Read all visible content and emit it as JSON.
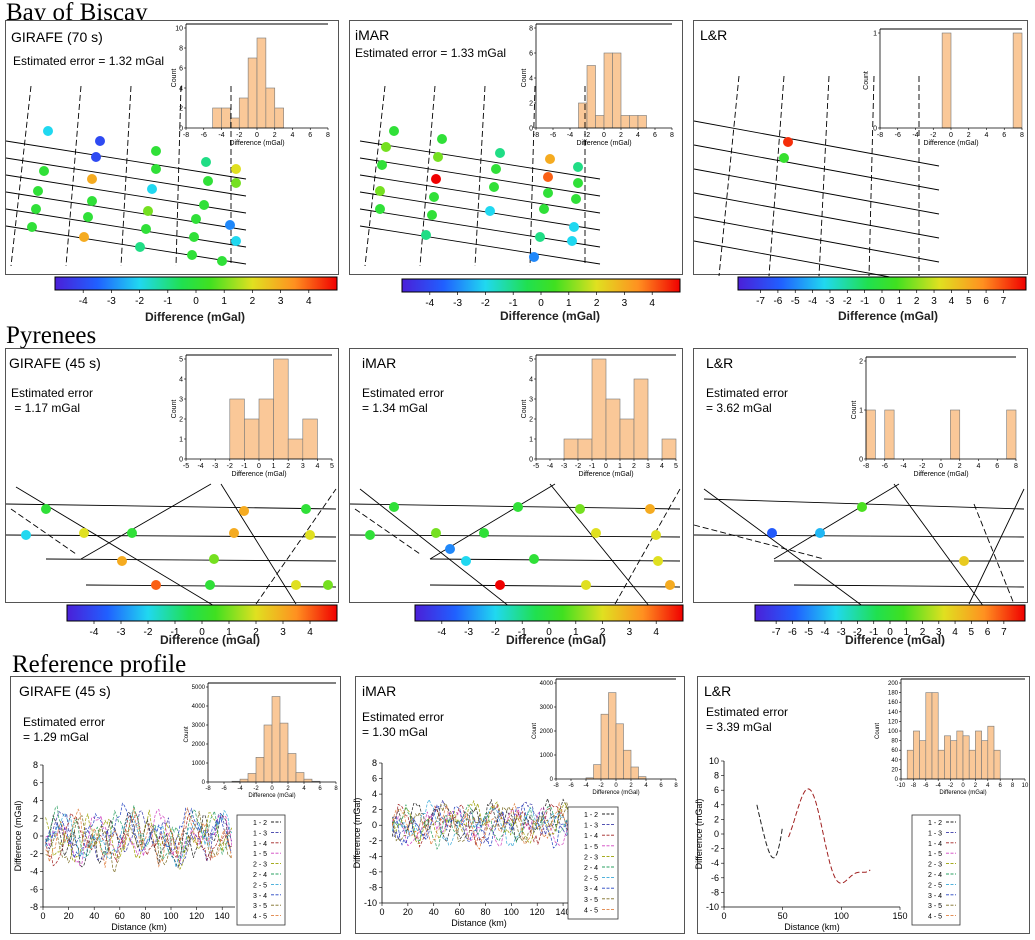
{
  "sections": {
    "biscay": "Bay of Biscay",
    "pyrenees": "Pyrenees",
    "reference": "Reference profile"
  },
  "colorbar_label": "Difference (mGal)",
  "hist_xlabel": "Difference (mGal)",
  "hist_ylabel": "Count",
  "profile_xlabel": "Distance (km)",
  "profile_ylabel": "Difference (mGal)",
  "legend_pairs": [
    "1 - 2",
    "1 - 3",
    "1 - 4",
    "1 - 5",
    "2 - 3",
    "2 - 4",
    "2 - 5",
    "3 - 4",
    "3 - 5",
    "4 - 5"
  ],
  "legend_colors": [
    "#222222",
    "#3a3aa8",
    "#a02020",
    "#d040c0",
    "#9aa000",
    "#2aa060",
    "#38a8d8",
    "#2040c0",
    "#7a6a20",
    "#e08040"
  ],
  "panels": {
    "b1": {
      "title": "GIRAFE (70 s)",
      "error": "Estimated error = 1.32 mGal"
    },
    "b2": {
      "title": "iMAR",
      "error": "Estimated error = 1.33 mGal"
    },
    "b3": {
      "title": "L&R",
      "error": ""
    },
    "p1": {
      "title": "GIRAFE (45 s)",
      "error": "Estimated error\n = 1.17 mGal"
    },
    "p2": {
      "title": "iMAR",
      "error": "Estimated error\n= 1.34 mGal"
    },
    "p3": {
      "title": "L&R",
      "error": "Estimated error\n= 3.62 mGal"
    },
    "r1": {
      "title": "GIRAFE (45 s)",
      "error": "Estimated error\n= 1.29 mGal"
    },
    "r2": {
      "title": "iMAR",
      "error": "Estimated error\n= 1.30 mGal"
    },
    "r3": {
      "title": "L&R",
      "error": "Estimated error\n= 3.39 mGal"
    }
  },
  "chart_data": [
    {
      "id": "b1_hist",
      "type": "bar",
      "xlabel": "Difference (mGal)",
      "ylabel": "Count",
      "xlim": [
        -8,
        8
      ],
      "ylim": [
        0,
        10
      ],
      "xticks": [
        -8,
        -6,
        -4,
        -2,
        0,
        2,
        4,
        6,
        8
      ],
      "yticks": [
        0,
        2,
        4,
        6,
        8,
        10
      ],
      "bins": [
        [
          -5,
          -4,
          2
        ],
        [
          -4,
          -3,
          2
        ],
        [
          -3,
          -2,
          1
        ],
        [
          -2,
          -1,
          3
        ],
        [
          -1,
          0,
          7
        ],
        [
          0,
          1,
          9
        ],
        [
          1,
          2,
          4
        ],
        [
          2,
          3,
          2
        ]
      ]
    },
    {
      "id": "b2_hist",
      "type": "bar",
      "xlabel": "Difference (mGal)",
      "ylabel": "Count",
      "xlim": [
        -8,
        8
      ],
      "ylim": [
        0,
        8
      ],
      "xticks": [
        -8,
        -6,
        -4,
        -2,
        0,
        2,
        4,
        6,
        8
      ],
      "yticks": [
        0,
        2,
        4,
        6,
        8
      ],
      "bins": [
        [
          -3,
          -2,
          2
        ],
        [
          -2,
          -1,
          5
        ],
        [
          -1,
          0,
          1
        ],
        [
          0,
          1,
          6
        ],
        [
          1,
          2,
          6
        ],
        [
          2,
          3,
          1
        ],
        [
          3,
          4,
          1
        ],
        [
          4,
          5,
          1
        ]
      ]
    },
    {
      "id": "b3_hist",
      "type": "bar",
      "xlabel": "Difference (mGal)",
      "ylabel": "Count",
      "xlim": [
        -8,
        8
      ],
      "ylim": [
        0,
        1
      ],
      "xticks": [
        -8,
        -6,
        -4,
        -2,
        0,
        2,
        4,
        6,
        8
      ],
      "yticks": [
        0,
        1
      ],
      "bins": [
        [
          -1,
          0,
          1
        ],
        [
          7,
          8,
          1
        ]
      ]
    },
    {
      "id": "p1_hist",
      "type": "bar",
      "xlabel": "Difference (mGal)",
      "ylabel": "Count",
      "xlim": [
        -5,
        5
      ],
      "ylim": [
        0,
        5
      ],
      "xticks": [
        -5,
        -4,
        -3,
        -2,
        -1,
        0,
        1,
        2,
        3,
        4,
        5
      ],
      "yticks": [
        0,
        1,
        2,
        3,
        4,
        5
      ],
      "bins": [
        [
          -2,
          -1,
          3
        ],
        [
          -1,
          0,
          2
        ],
        [
          0,
          1,
          3
        ],
        [
          1,
          2,
          5
        ],
        [
          2,
          3,
          1
        ],
        [
          3,
          4,
          2
        ]
      ]
    },
    {
      "id": "p2_hist",
      "type": "bar",
      "xlabel": "Difference (mGal)",
      "ylabel": "Count",
      "xlim": [
        -5,
        5
      ],
      "ylim": [
        0,
        5
      ],
      "xticks": [
        -5,
        -4,
        -3,
        -2,
        -1,
        0,
        1,
        2,
        3,
        4,
        5
      ],
      "yticks": [
        0,
        1,
        2,
        3,
        4,
        5
      ],
      "bins": [
        [
          -3,
          -2,
          1
        ],
        [
          -2,
          -1,
          1
        ],
        [
          -1,
          0,
          5
        ],
        [
          0,
          1,
          3
        ],
        [
          1,
          2,
          2
        ],
        [
          2,
          3,
          4
        ],
        [
          4,
          5,
          1
        ]
      ]
    },
    {
      "id": "p3_hist",
      "type": "bar",
      "xlabel": "Difference (mGal)",
      "ylabel": "Count",
      "xlim": [
        -8,
        8
      ],
      "ylim": [
        0,
        2
      ],
      "xticks": [
        -8,
        -6,
        -4,
        -2,
        0,
        2,
        4,
        6,
        8
      ],
      "yticks": [
        0,
        1,
        2
      ],
      "bins": [
        [
          -8,
          -7,
          1
        ],
        [
          -6,
          -5,
          1
        ],
        [
          1,
          2,
          1
        ],
        [
          7,
          8,
          1
        ]
      ]
    },
    {
      "id": "r1_hist",
      "type": "bar",
      "xlabel": "Difference (mGal)",
      "ylabel": "Count",
      "xlim": [
        -8,
        8
      ],
      "ylim": [
        0,
        5000
      ],
      "xticks": [
        -8,
        -6,
        -4,
        -2,
        0,
        2,
        4,
        6,
        8
      ],
      "yticks": [
        0,
        1000,
        2000,
        3000,
        4000,
        5000
      ],
      "bins": [
        [
          -5,
          -4,
          40
        ],
        [
          -4,
          -3,
          150
        ],
        [
          -3,
          -2,
          450
        ],
        [
          -2,
          -1,
          1300
        ],
        [
          -1,
          0,
          3000
        ],
        [
          0,
          1,
          4500
        ],
        [
          1,
          2,
          3100
        ],
        [
          2,
          3,
          1500
        ],
        [
          3,
          4,
          500
        ],
        [
          4,
          5,
          150
        ],
        [
          5,
          6,
          40
        ]
      ]
    },
    {
      "id": "r2_hist",
      "type": "bar",
      "xlabel": "Difference (mGal)",
      "ylabel": "Count",
      "xlim": [
        -8,
        8
      ],
      "ylim": [
        0,
        4000
      ],
      "xticks": [
        -8,
        -6,
        -4,
        -2,
        0,
        2,
        4,
        6,
        8
      ],
      "yticks": [
        0,
        1000,
        2000,
        3000,
        4000
      ],
      "bins": [
        [
          -4,
          -3,
          50
        ],
        [
          -3,
          -2,
          600
        ],
        [
          -2,
          -1,
          2700
        ],
        [
          -1,
          0,
          3600
        ],
        [
          0,
          1,
          2300
        ],
        [
          1,
          2,
          1200
        ],
        [
          2,
          3,
          500
        ],
        [
          3,
          4,
          100
        ]
      ]
    },
    {
      "id": "r3_hist",
      "type": "bar",
      "xlabel": "Difference (mGal)",
      "ylabel": "Count",
      "xlim": [
        -10,
        10
      ],
      "ylim": [
        0,
        200
      ],
      "xticks": [
        -10,
        -8,
        -6,
        -4,
        -2,
        0,
        2,
        4,
        6,
        8,
        10
      ],
      "yticks": [
        0,
        20,
        40,
        60,
        80,
        100,
        120,
        140,
        160,
        180,
        200
      ],
      "bins": [
        [
          -9,
          -8,
          60
        ],
        [
          -8,
          -7,
          100
        ],
        [
          -7,
          -6,
          80
        ],
        [
          -6,
          -5,
          180
        ],
        [
          -5,
          -4,
          180
        ],
        [
          -4,
          -3,
          60
        ],
        [
          -3,
          -2,
          90
        ],
        [
          -2,
          -1,
          80
        ],
        [
          -1,
          0,
          100
        ],
        [
          0,
          1,
          90
        ],
        [
          1,
          2,
          60
        ],
        [
          2,
          3,
          100
        ],
        [
          3,
          4,
          80
        ],
        [
          4,
          5,
          110
        ],
        [
          5,
          6,
          60
        ]
      ]
    },
    {
      "id": "r1_profile",
      "type": "line",
      "xlabel": "Distance (km)",
      "ylabel": "Difference (mGal)",
      "xlim": [
        0,
        150
      ],
      "ylim": [
        -8,
        8
      ],
      "xticks": [
        0,
        20,
        40,
        60,
        80,
        100,
        120,
        140
      ],
      "yticks": [
        -8,
        -6,
        -4,
        -2,
        0,
        2,
        4,
        6,
        8
      ],
      "seed": 11,
      "x_start": 2,
      "x_end": 148,
      "amplitude": 2.2
    },
    {
      "id": "r2_profile",
      "type": "line",
      "xlabel": "Distance (km)",
      "ylabel": "Difference (mGal)",
      "xlim": [
        0,
        150
      ],
      "ylim": [
        -10,
        8
      ],
      "xticks": [
        0,
        20,
        40,
        60,
        80,
        100,
        120,
        140
      ],
      "yticks": [
        -10,
        -8,
        -6,
        -4,
        -2,
        0,
        2,
        4,
        6,
        8
      ],
      "seed": 29,
      "x_start": 8,
      "x_end": 145,
      "amplitude": 2.0
    },
    {
      "id": "r3_profile",
      "type": "line",
      "xlabel": "Distance (km)",
      "ylabel": "Difference (mGal)",
      "xlim": [
        0,
        150
      ],
      "ylim": [
        -10,
        10
      ],
      "xticks": [
        0,
        50,
        100,
        150
      ],
      "yticks": [
        -10,
        -8,
        -6,
        -4,
        -2,
        0,
        2,
        4,
        6,
        8,
        10
      ]
    }
  ]
}
